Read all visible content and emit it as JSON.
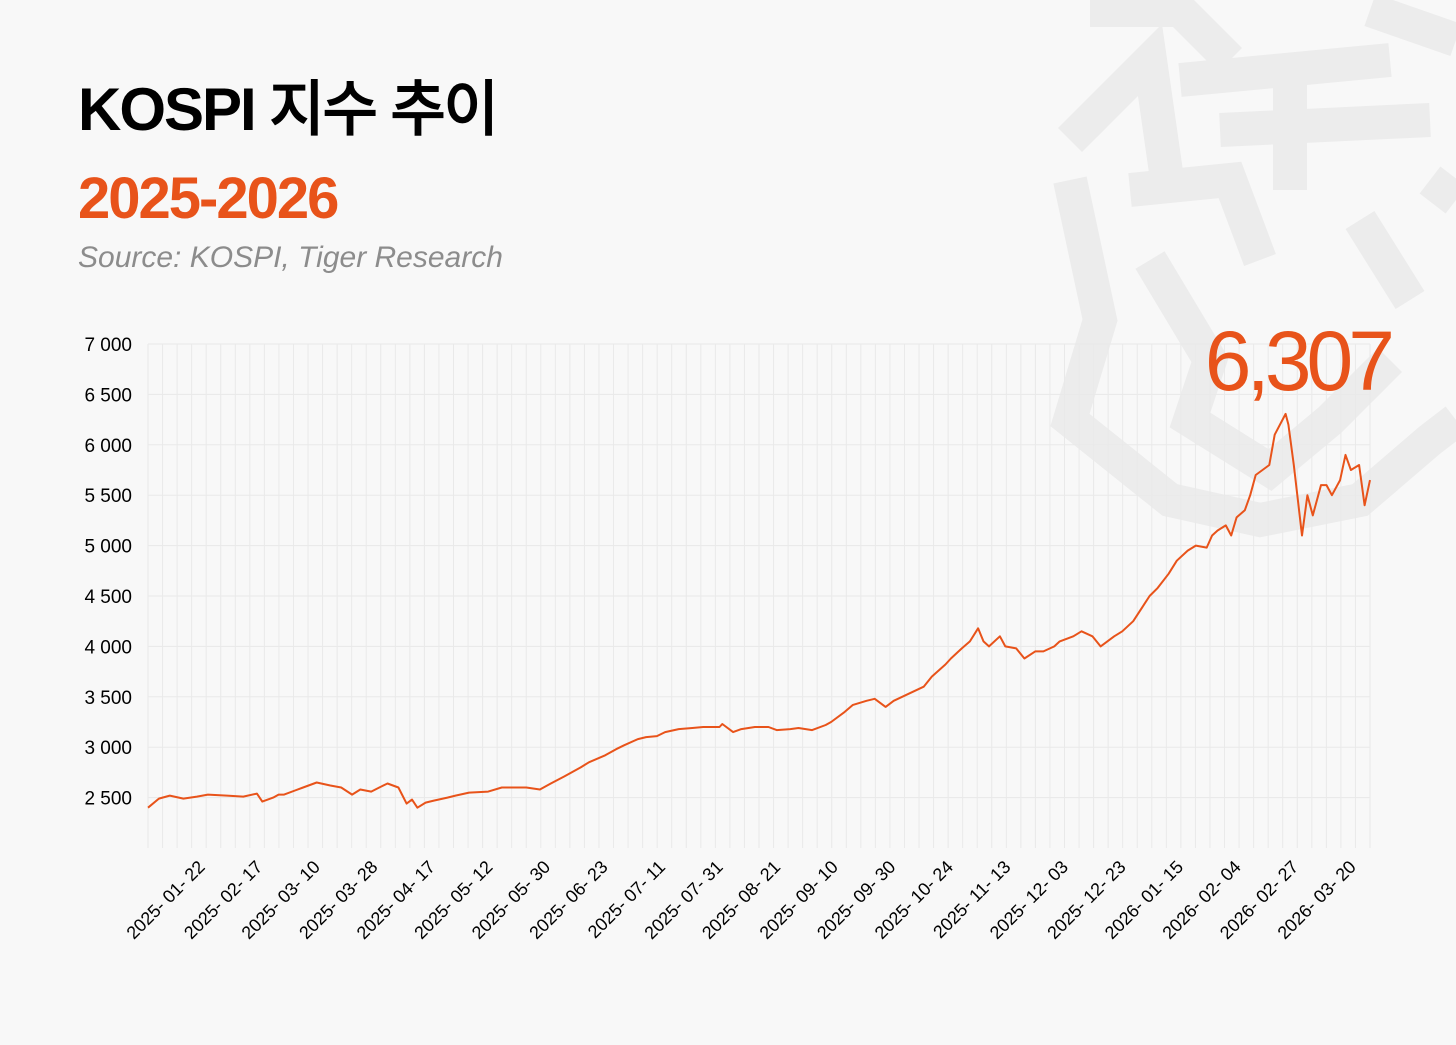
{
  "header": {
    "title": "KOSPI 지수 추이",
    "subtitle": "2025-2026",
    "source": "Source: KOSPI, Tiger Research"
  },
  "colors": {
    "accent": "#e8531a",
    "title": "#000000",
    "source": "#8c8c8c",
    "grid": "#e9e9e9",
    "background": "#f8f8f8",
    "watermark": "#ececec"
  },
  "watermark_icon": "tiger-head-icon",
  "chart_data": {
    "type": "line",
    "title": "",
    "xlabel": "",
    "ylabel": "",
    "ylim": [
      2000,
      7000
    ],
    "x_range": [
      "2025-01-02",
      "2026-03-27"
    ],
    "grid": true,
    "legend": "none",
    "y_ticks": [
      "2 500",
      "3 000",
      "3 500",
      "4 000",
      "4 500",
      "5 000",
      "5 500",
      "6 000",
      "6 500",
      "7 000"
    ],
    "y_tick_values": [
      2500,
      3000,
      3500,
      4000,
      4500,
      5000,
      5500,
      6000,
      6500,
      7000
    ],
    "x_ticks": [
      "2025- 01- 22",
      "2025- 02- 17",
      "2025- 03- 10",
      "2025- 03- 28",
      "2025- 04- 17",
      "2025- 05- 12",
      "2025- 05- 30",
      "2025- 06- 23",
      "2025- 07- 11",
      "2025- 07- 31",
      "2025- 08- 21",
      "2025- 09- 10",
      "2025- 09- 30",
      "2025- 10- 24",
      "2025- 11- 13",
      "2025- 12- 03",
      "2025- 12- 23",
      "2026- 01- 15",
      "2026- 02- 04",
      "2026- 02- 27",
      "2026- 03- 20"
    ],
    "peak_label": "6,307",
    "peak_value": 6307,
    "series": [
      {
        "color": "#e8531a",
        "x": [
          "2025-01-02",
          "2025-01-06",
          "2025-01-10",
          "2025-01-15",
          "2025-01-20",
          "2025-01-24",
          "2025-01-31",
          "2025-02-06",
          "2025-02-11",
          "2025-02-13",
          "2025-02-17",
          "2025-02-19",
          "2025-02-21",
          "2025-02-25",
          "2025-02-28",
          "2025-03-05",
          "2025-03-10",
          "2025-03-14",
          "2025-03-18",
          "2025-03-21",
          "2025-03-25",
          "2025-03-28",
          "2025-03-31",
          "2025-04-04",
          "2025-04-07",
          "2025-04-09",
          "2025-04-11",
          "2025-04-14",
          "2025-04-17",
          "2025-04-22",
          "2025-04-25",
          "2025-04-30",
          "2025-05-07",
          "2025-05-12",
          "2025-05-16",
          "2025-05-21",
          "2025-05-26",
          "2025-05-30",
          "2025-06-04",
          "2025-06-10",
          "2025-06-13",
          "2025-06-19",
          "2025-06-23",
          "2025-06-26",
          "2025-07-01",
          "2025-07-04",
          "2025-07-08",
          "2025-07-11",
          "2025-07-16",
          "2025-07-21",
          "2025-07-25",
          "2025-07-31",
          "2025-08-01",
          "2025-08-05",
          "2025-08-08",
          "2025-08-13",
          "2025-08-18",
          "2025-08-21",
          "2025-08-26",
          "2025-08-29",
          "2025-09-03",
          "2025-09-08",
          "2025-09-10",
          "2025-09-15",
          "2025-09-18",
          "2025-09-23",
          "2025-09-26",
          "2025-09-30",
          "2025-10-03",
          "2025-10-10",
          "2025-10-14",
          "2025-10-17",
          "2025-10-22",
          "2025-10-24",
          "2025-10-28",
          "2025-10-31",
          "2025-11-03",
          "2025-11-05",
          "2025-11-07",
          "2025-11-11",
          "2025-11-13",
          "2025-11-17",
          "2025-11-20",
          "2025-11-24",
          "2025-11-27",
          "2025-12-01",
          "2025-12-03",
          "2025-12-08",
          "2025-12-11",
          "2025-12-15",
          "2025-12-18",
          "2025-12-23",
          "2025-12-26",
          "2025-12-30",
          "2026-01-05",
          "2026-01-08",
          "2026-01-12",
          "2026-01-15",
          "2026-01-19",
          "2026-01-22",
          "2026-01-26",
          "2026-01-28",
          "2026-01-30",
          "2026-02-02",
          "2026-02-04",
          "2026-02-06",
          "2026-02-09",
          "2026-02-11",
          "2026-02-13",
          "2026-02-18",
          "2026-02-20",
          "2026-02-24",
          "2026-02-25",
          "2026-02-27",
          "2026-03-02",
          "2026-03-04",
          "2026-03-06",
          "2026-03-09",
          "2026-03-11",
          "2026-03-13",
          "2026-03-16",
          "2026-03-18",
          "2026-03-20",
          "2026-03-23",
          "2026-03-25",
          "2026-03-27"
        ],
        "values": [
          2400,
          2490,
          2520,
          2490,
          2510,
          2530,
          2520,
          2510,
          2540,
          2460,
          2500,
          2530,
          2530,
          2570,
          2600,
          2650,
          2620,
          2600,
          2530,
          2580,
          2560,
          2600,
          2640,
          2600,
          2440,
          2480,
          2400,
          2450,
          2470,
          2500,
          2520,
          2550,
          2560,
          2600,
          2600,
          2600,
          2580,
          2640,
          2710,
          2800,
          2850,
          2920,
          2980,
          3020,
          3080,
          3100,
          3110,
          3150,
          3180,
          3190,
          3200,
          3200,
          3230,
          3150,
          3180,
          3200,
          3200,
          3170,
          3180,
          3190,
          3170,
          3220,
          3250,
          3350,
          3420,
          3460,
          3480,
          3400,
          3460,
          3550,
          3600,
          3700,
          3820,
          3880,
          3980,
          4050,
          4180,
          4050,
          4000,
          4100,
          4000,
          3980,
          3880,
          3950,
          3950,
          4000,
          4050,
          4100,
          4150,
          4100,
          4000,
          4100,
          4150,
          4250,
          4500,
          4580,
          4720,
          4850,
          4950,
          5000,
          4980,
          5100,
          5150,
          5200,
          5100,
          5280,
          5350,
          5500,
          5700,
          5800,
          6100,
          6307,
          6200,
          5800,
          5100,
          5500,
          5300,
          5600,
          5600,
          5500,
          5650,
          5900,
          5750,
          5800,
          5400,
          5650
        ]
      }
    ]
  }
}
